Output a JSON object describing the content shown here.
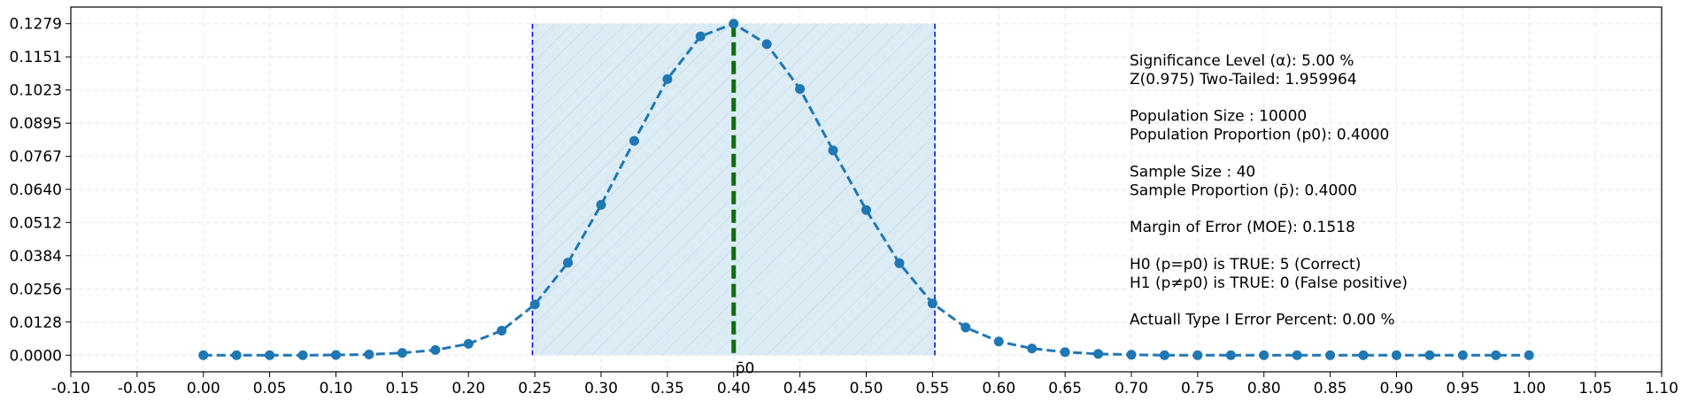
{
  "chart_data": {
    "type": "line",
    "title": "",
    "xlabel": "",
    "ylabel": "",
    "xlim": [
      -0.1,
      1.1
    ],
    "ylim": [
      -0.0064,
      0.1343
    ],
    "grid": true,
    "x_ticks": [
      "-0.10",
      "-0.05",
      "0.00",
      "0.05",
      "0.10",
      "0.15",
      "0.20",
      "0.25",
      "0.30",
      "0.35",
      "0.40",
      "0.45",
      "0.50",
      "0.55",
      "0.60",
      "0.65",
      "0.70",
      "0.75",
      "0.80",
      "0.85",
      "0.90",
      "0.95",
      "1.00",
      "1.05",
      "1.10"
    ],
    "y_ticks": [
      "0.0000",
      "0.0128",
      "0.0256",
      "0.0384",
      "0.0512",
      "0.0640",
      "0.0767",
      "0.0895",
      "0.1023",
      "0.1151",
      "0.1279"
    ],
    "series": [
      {
        "color": "#1f77b4",
        "style": "dashed-with-markers",
        "x": [
          0.0,
          0.025,
          0.05,
          0.075,
          0.1,
          0.125,
          0.15,
          0.175,
          0.2,
          0.225,
          0.25,
          0.275,
          0.3,
          0.325,
          0.35,
          0.375,
          0.4,
          0.425,
          0.45,
          0.475,
          0.5,
          0.525,
          0.55,
          0.575,
          0.6,
          0.625,
          0.65,
          0.675,
          0.7,
          0.725,
          0.75,
          0.775,
          0.8,
          0.825,
          0.85,
          0.875,
          0.9,
          0.925,
          0.95,
          0.975,
          1.0
        ],
        "y": [
          0.0,
          0.0,
          0.0,
          0.0,
          0.0001,
          0.0003,
          0.0009,
          0.002,
          0.0044,
          0.0095,
          0.0196,
          0.0357,
          0.058,
          0.0827,
          0.1065,
          0.123,
          0.1279,
          0.12,
          0.1027,
          0.079,
          0.056,
          0.0355,
          0.02,
          0.0107,
          0.0053,
          0.0026,
          0.0012,
          0.0005,
          0.0002,
          0.0,
          0.0,
          0.0,
          0.0,
          0.0,
          0.0,
          0.0,
          0.0,
          0.0,
          0.0,
          0.0,
          0.0
        ]
      }
    ],
    "confidence_region": {
      "x_low": 0.2482,
      "x_high": 0.5518,
      "fill": "#d6e9f3",
      "border_color": "#0000ff"
    },
    "p0_line": {
      "x": 0.4,
      "color": "#0b6e0b",
      "label": "p̄0"
    },
    "info_lines": [
      "Significance Level (α): 5.00 %",
      "Z(0.975) Two-Tailed: 1.959964",
      "",
      "Population Size : 10000",
      "Population Proportion (p0): 0.4000",
      "",
      "Sample Size : 40",
      "Sample Proportion (p̄): 0.4000",
      "",
      "Margin of Error (MOE): 0.1518",
      "",
      "H0 (p=p0) is TRUE: 5 (Correct)",
      "H1 (p≠p0) is TRUE: 0 (False positive)",
      "",
      "Actuall Type I Error Percent: 0.00 %"
    ]
  }
}
